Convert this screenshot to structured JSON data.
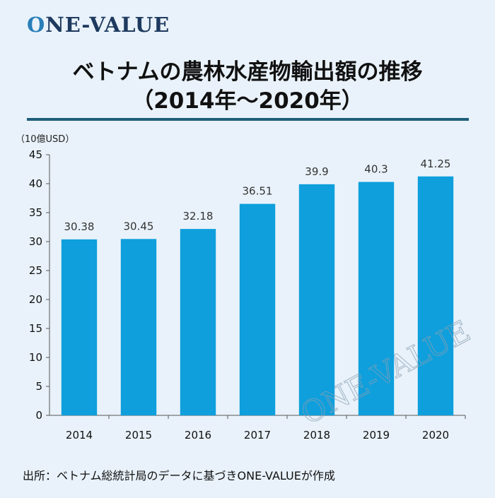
{
  "logo": {
    "mark": "O",
    "rest": "NE-VALUE"
  },
  "title": {
    "line1": "ベトナムの農林水産物輸出額の推移",
    "line2": "（2014年～2020年）"
  },
  "source": "出所：ベトナム総統計局のデータに基づきONE-VALUEが作成",
  "watermark": "ONE-VALUE",
  "colors": {
    "bar": "#0e9fdc",
    "rule": "#1f5f7a",
    "background": "#e9f2fa",
    "logo": "#1e3a5f"
  },
  "chart_data": {
    "type": "bar",
    "title": "",
    "xlabel": "",
    "ylabel": "（10億USD）",
    "categories": [
      "2014",
      "2015",
      "2016",
      "2017",
      "2018",
      "2019",
      "2020"
    ],
    "values": [
      30.38,
      30.45,
      32.18,
      36.51,
      39.9,
      40.3,
      41.25
    ],
    "value_labels": [
      "30.38",
      "30.45",
      "32.18",
      "36.51",
      "39.9",
      "40.3",
      "41.25"
    ],
    "ylim": [
      0,
      45
    ],
    "yticks": [
      0,
      5,
      10,
      15,
      20,
      25,
      30,
      35,
      40,
      45
    ],
    "grid": false,
    "legend": "none"
  }
}
